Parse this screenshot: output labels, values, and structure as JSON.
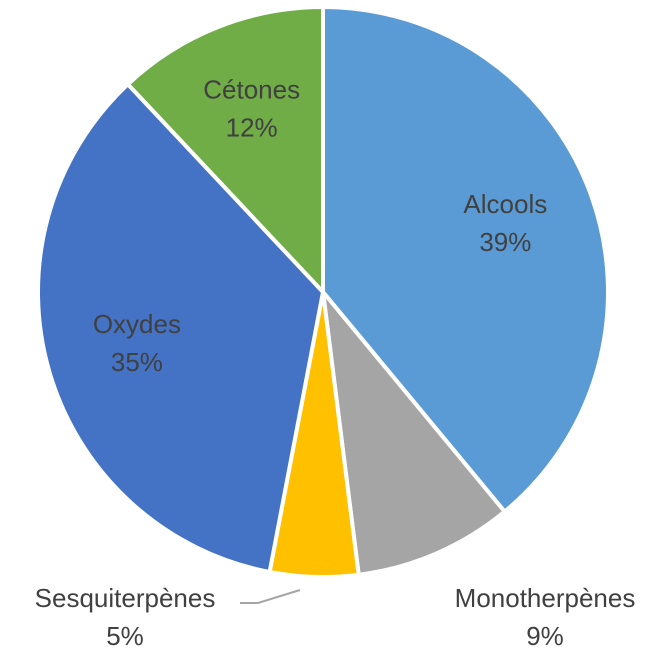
{
  "chart_data": {
    "type": "pie",
    "categories": [
      "Alcools",
      "Monotherpènes",
      "Sesquiterpènes",
      "Oxydes",
      "Cétones"
    ],
    "values": [
      39,
      9,
      5,
      35,
      12
    ],
    "value_labels": [
      "39%",
      "9%",
      "5%",
      "35%",
      "12%"
    ],
    "colors": [
      "#5b9bd5",
      "#a5a5a5",
      "#ffc000",
      "#4472c4",
      "#70ad47"
    ]
  }
}
